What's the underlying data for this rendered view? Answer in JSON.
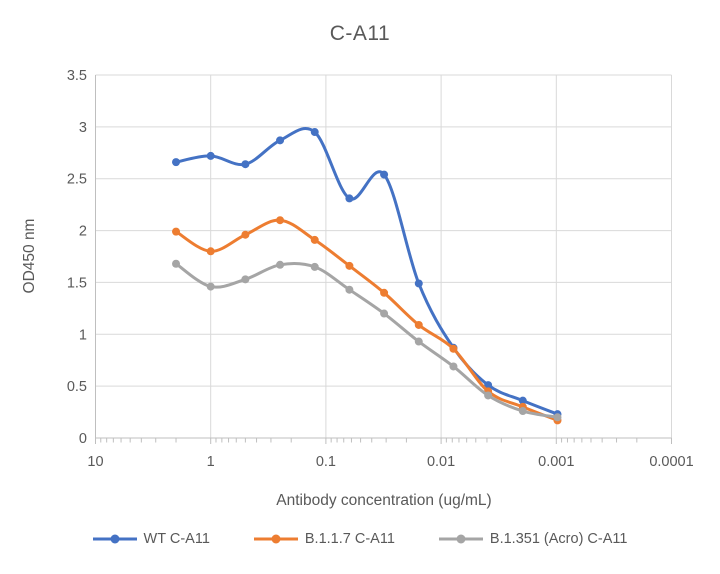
{
  "chart_data": {
    "type": "line",
    "title": "C-A11",
    "xlabel": "Antibody concentration (ug/mL)",
    "ylabel": "OD450 nm",
    "x_axis": {
      "scale": "log",
      "reversed": true,
      "min": 0.0001,
      "max": 10,
      "major_ticks": [
        {
          "value": 10,
          "label": "10"
        },
        {
          "value": 1,
          "label": "1"
        },
        {
          "value": 0.1,
          "label": "0.1"
        },
        {
          "value": 0.01,
          "label": "0.01"
        },
        {
          "value": 0.001,
          "label": "0.001"
        },
        {
          "value": 0.0001,
          "label": "0.0001"
        }
      ]
    },
    "y_axis": {
      "min": 0,
      "max": 3.5,
      "ticks": [
        {
          "value": 0,
          "label": "0"
        },
        {
          "value": 0.5,
          "label": "0.5"
        },
        {
          "value": 1,
          "label": "1"
        },
        {
          "value": 1.5,
          "label": "1.5"
        },
        {
          "value": 2,
          "label": "2"
        },
        {
          "value": 2.5,
          "label": "2.5"
        },
        {
          "value": 3,
          "label": "3"
        },
        {
          "value": 3.5,
          "label": "3.5"
        }
      ]
    },
    "x": [
      2,
      1,
      0.5,
      0.25,
      0.125,
      0.0625,
      0.03125,
      0.015625,
      0.0078125,
      0.00390625,
      0.001953125,
      0.0009765625
    ],
    "series": [
      {
        "name": "WT C-A11",
        "color": "#4472C4",
        "values": [
          2.66,
          2.72,
          2.64,
          2.87,
          2.95,
          2.31,
          2.54,
          1.49,
          0.87,
          0.51,
          0.36,
          0.23
        ]
      },
      {
        "name": "B.1.1.7 C-A11",
        "color": "#ED7D31",
        "values": [
          1.99,
          1.8,
          1.96,
          2.1,
          1.91,
          1.66,
          1.4,
          1.09,
          0.86,
          0.45,
          0.3,
          0.17
        ]
      },
      {
        "name": "B.1.351 (Acro) C-A11",
        "color": "#A5A5A5",
        "values": [
          1.68,
          1.46,
          1.53,
          1.67,
          1.65,
          1.43,
          1.2,
          0.93,
          0.69,
          0.41,
          0.26,
          0.2
        ]
      }
    ],
    "style": {
      "smoothed": true,
      "grid_color": "#D9D9D9",
      "axis_color": "#BFBFBF",
      "text_color": "#595959",
      "background": "#FFFFFF",
      "legend_position": "bottom"
    }
  }
}
